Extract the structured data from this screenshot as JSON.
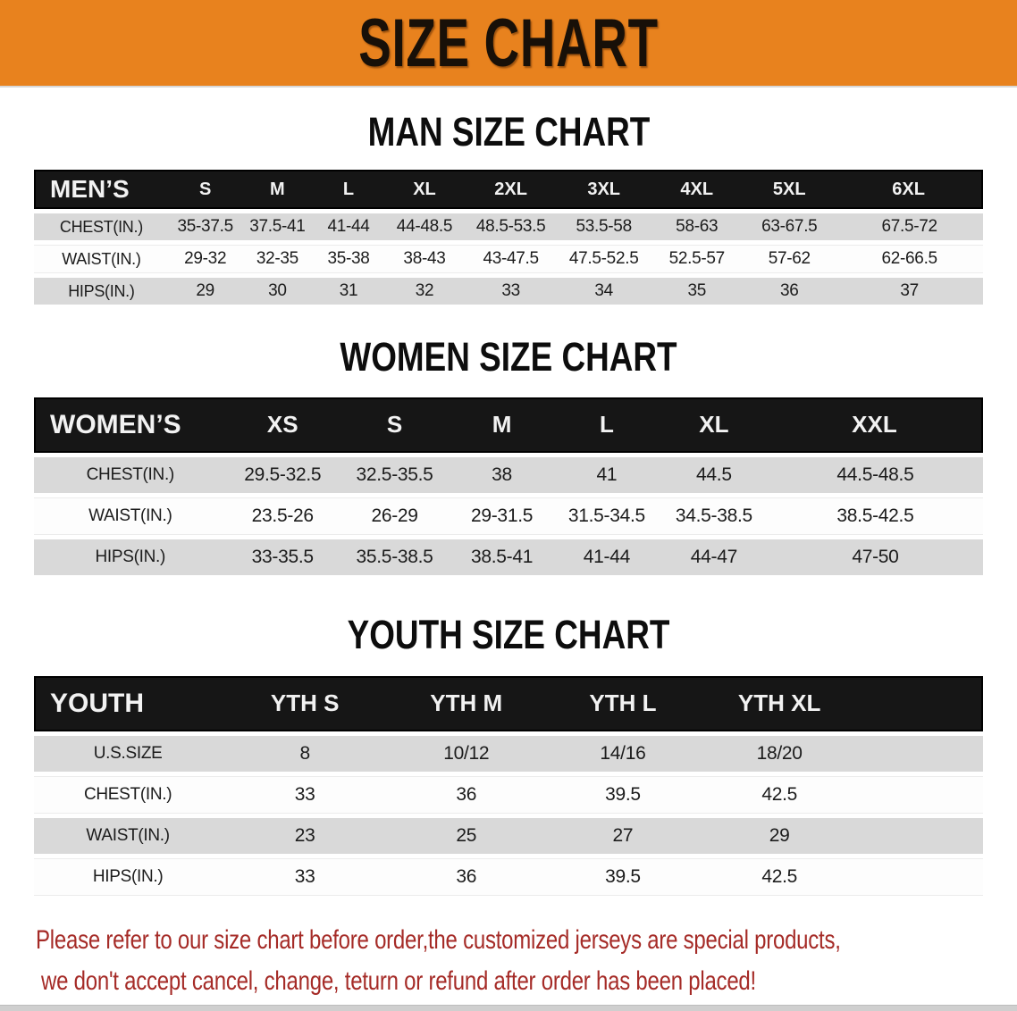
{
  "banner": {
    "title": "SIZE CHART",
    "bg_color": "#E8821E",
    "text_color": "#181008"
  },
  "sections": {
    "men": {
      "heading": "MAN SIZE CHART"
    },
    "women": {
      "heading": "WOMEN SIZE CHART"
    },
    "youth": {
      "heading": "YOUTH SIZE CHART"
    }
  },
  "tables": {
    "men": {
      "header_label": "MEN’S",
      "columns": [
        "S",
        "M",
        "L",
        "XL",
        "2XL",
        "3XL",
        "4XL",
        "5XL",
        "6XL"
      ],
      "rows": [
        {
          "label": "CHEST(IN.)",
          "values": [
            "35-37.5",
            "37.5-41",
            "41-44",
            "44-48.5",
            "48.5-53.5",
            "53.5-58",
            "58-63",
            "63-67.5",
            "67.5-72"
          ]
        },
        {
          "label": "WAIST(IN.)",
          "values": [
            "29-32",
            "32-35",
            "35-38",
            "38-43",
            "43-47.5",
            "47.5-52.5",
            "52.5-57",
            "57-62",
            "62-66.5"
          ]
        },
        {
          "label": "HIPS(IN.)",
          "values": [
            "29",
            "30",
            "31",
            "32",
            "33",
            "34",
            "35",
            "36",
            "37"
          ]
        }
      ]
    },
    "women": {
      "header_label": "WOMEN’S",
      "columns": [
        "XS",
        "S",
        "M",
        "L",
        "XL",
        "XXL"
      ],
      "rows": [
        {
          "label": "CHEST(IN.)",
          "values": [
            "29.5-32.5",
            "32.5-35.5",
            "38",
            "41",
            "44.5",
            "44.5-48.5"
          ]
        },
        {
          "label": "WAIST(IN.)",
          "values": [
            "23.5-26",
            "26-29",
            "29-31.5",
            "31.5-34.5",
            "34.5-38.5",
            "38.5-42.5"
          ]
        },
        {
          "label": "HIPS(IN.)",
          "values": [
            "33-35.5",
            "35.5-38.5",
            "38.5-41",
            "41-44",
            "44-47",
            "47-50"
          ]
        }
      ]
    },
    "youth": {
      "header_label": "YOUTH",
      "columns": [
        "YTH S",
        "YTH M",
        "YTH L",
        "YTH XL"
      ],
      "rows": [
        {
          "label": "U.S.SIZE",
          "values": [
            "8",
            "10/12",
            "14/16",
            "18/20"
          ]
        },
        {
          "label": "CHEST(IN.)",
          "values": [
            "33",
            "36",
            "39.5",
            "42.5"
          ]
        },
        {
          "label": "WAIST(IN.)",
          "values": [
            "23",
            "25",
            "27",
            "29"
          ]
        },
        {
          "label": "HIPS(IN.)",
          "values": [
            "33",
            "36",
            "39.5",
            "42.5"
          ]
        }
      ]
    }
  },
  "disclaimer": {
    "line1": "Please refer to our size chart before order,the customized jerseys are special products,",
    "line2": "we don't accept cancel, change, teturn or refund after order has been placed!",
    "color": "#A52B27"
  },
  "colors": {
    "header_bg": "#161616",
    "row_gray": "#D9D9D9",
    "row_white": "#FDFDFD"
  }
}
